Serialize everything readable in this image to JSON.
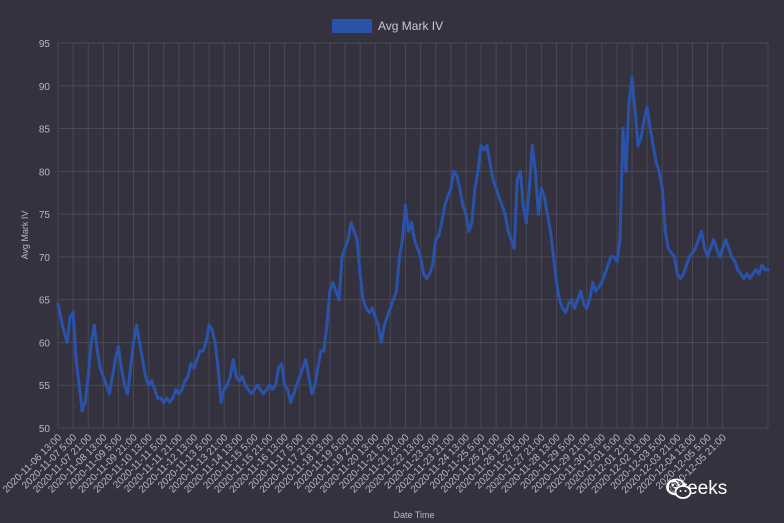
{
  "chart_data": {
    "type": "line",
    "xlabel": "Date Time",
    "ylabel": "Avg Mark IV",
    "ylim": [
      50,
      95
    ],
    "yticks": [
      50,
      55,
      60,
      65,
      70,
      75,
      80,
      85,
      90,
      95
    ],
    "grid": true,
    "legend_position": "top",
    "x_categories": [
      "2020-11-06 13:00",
      "2020-11-07 5:00",
      "2020-11-07 21:00",
      "2020-11-08 13:00",
      "2020-11-09 5:00",
      "2020-11-09 21:00",
      "2020-11-10 13:00",
      "2020-11-11 5:00",
      "2020-11-11 21:00",
      "2020-11-12 13:00",
      "2020-11-13 5:00",
      "2020-11-13 21:00",
      "2020-11-14 13:00",
      "2020-11-15 5:00",
      "2020-11-15 21:00",
      "2020-11-16 13:00",
      "2020-11-17 5:00",
      "2020-11-17 21:00",
      "2020-11-18 13:00",
      "2020-11-19 5:00",
      "2020-11-19 21:00",
      "2020-11-20 13:00",
      "2020-11-21 5:00",
      "2020-11-21 21:00",
      "2020-11-22 13:00",
      "2020-11-23 5:00",
      "2020-11-23 21:00",
      "2020-11-24 13:00",
      "2020-11-25 5:00",
      "2020-11-25 21:00",
      "2020-11-26 13:00",
      "2020-11-27 5:00",
      "2020-11-27 21:00",
      "2020-11-28 13:00",
      "2020-11-29 5:00",
      "2020-11-29 21:00",
      "2020-11-30 13:00",
      "2020-12-01 5:00",
      "2020-12-01 21:00",
      "2020-12-02 13:00",
      "2020-12-03 5:00",
      "2020-12-03 21:00",
      "2020-12-04 13:00",
      "2020-12-05 5:00",
      "2020-12-05 21:00"
    ],
    "series": [
      {
        "name": "Avg Mark IV",
        "color": "#2a52a8",
        "points": [
          [
            0,
            64.5
          ],
          [
            0.3,
            62
          ],
          [
            0.6,
            60
          ],
          [
            0.8,
            63
          ],
          [
            1.0,
            63.5
          ],
          [
            1.2,
            58
          ],
          [
            1.4,
            55
          ],
          [
            1.6,
            52
          ],
          [
            1.8,
            53
          ],
          [
            2.0,
            56
          ],
          [
            2.2,
            60
          ],
          [
            2.4,
            62
          ],
          [
            2.6,
            59
          ],
          [
            2.8,
            57
          ],
          [
            3.0,
            56
          ],
          [
            3.2,
            55
          ],
          [
            3.4,
            54
          ],
          [
            3.6,
            56
          ],
          [
            3.8,
            58
          ],
          [
            4.0,
            59.5
          ],
          [
            4.2,
            57
          ],
          [
            4.4,
            55
          ],
          [
            4.6,
            54
          ],
          [
            4.8,
            57
          ],
          [
            5.0,
            60
          ],
          [
            5.2,
            62
          ],
          [
            5.4,
            60
          ],
          [
            5.6,
            58
          ],
          [
            5.8,
            56
          ],
          [
            6.0,
            55
          ],
          [
            6.2,
            55.5
          ],
          [
            6.4,
            54.5
          ],
          [
            6.6,
            53.5
          ],
          [
            6.8,
            53.5
          ],
          [
            7.0,
            53
          ],
          [
            7.2,
            53.5
          ],
          [
            7.4,
            53
          ],
          [
            7.6,
            53.5
          ],
          [
            7.8,
            54.5
          ],
          [
            8.0,
            54
          ],
          [
            8.2,
            54.5
          ],
          [
            8.4,
            55.5
          ],
          [
            8.6,
            56
          ],
          [
            8.8,
            57.5
          ],
          [
            9.0,
            57
          ],
          [
            9.2,
            58
          ],
          [
            9.4,
            59
          ],
          [
            9.6,
            59
          ],
          [
            9.8,
            60
          ],
          [
            10.0,
            62
          ],
          [
            10.2,
            61.5
          ],
          [
            10.4,
            60
          ],
          [
            10.6,
            57
          ],
          [
            10.8,
            53
          ],
          [
            11.0,
            54.5
          ],
          [
            11.2,
            55
          ],
          [
            11.4,
            56
          ],
          [
            11.6,
            58
          ],
          [
            11.8,
            56
          ],
          [
            12.0,
            55.5
          ],
          [
            12.2,
            56
          ],
          [
            12.4,
            55
          ],
          [
            12.6,
            54.5
          ],
          [
            12.8,
            54
          ],
          [
            13.0,
            54.5
          ],
          [
            13.2,
            55
          ],
          [
            13.4,
            54.5
          ],
          [
            13.6,
            54
          ],
          [
            13.8,
            54.5
          ],
          [
            14.0,
            55
          ],
          [
            14.2,
            54.5
          ],
          [
            14.4,
            55
          ],
          [
            14.6,
            57
          ],
          [
            14.8,
            57.5
          ],
          [
            15.0,
            55
          ],
          [
            15.2,
            54.5
          ],
          [
            15.4,
            53
          ],
          [
            15.6,
            54
          ],
          [
            15.8,
            55
          ],
          [
            16.0,
            56
          ],
          [
            16.2,
            57
          ],
          [
            16.4,
            58
          ],
          [
            16.6,
            56
          ],
          [
            16.8,
            54
          ],
          [
            17.0,
            55
          ],
          [
            17.2,
            57
          ],
          [
            17.4,
            59
          ],
          [
            17.6,
            59
          ],
          [
            17.8,
            62
          ],
          [
            18.0,
            66
          ],
          [
            18.2,
            67
          ],
          [
            18.4,
            66
          ],
          [
            18.6,
            65
          ],
          [
            18.8,
            70
          ],
          [
            19.0,
            71
          ],
          [
            19.2,
            72
          ],
          [
            19.4,
            74
          ],
          [
            19.6,
            73
          ],
          [
            19.8,
            72
          ],
          [
            20.0,
            68
          ],
          [
            20.2,
            65
          ],
          [
            20.4,
            64
          ],
          [
            20.6,
            63.5
          ],
          [
            20.8,
            64
          ],
          [
            21.0,
            63
          ],
          [
            21.2,
            62
          ],
          [
            21.4,
            60
          ],
          [
            21.6,
            62
          ],
          [
            21.8,
            63
          ],
          [
            22.0,
            64
          ],
          [
            22.2,
            65
          ],
          [
            22.4,
            66
          ],
          [
            22.6,
            70
          ],
          [
            22.8,
            72
          ],
          [
            23.0,
            76
          ],
          [
            23.2,
            73
          ],
          [
            23.4,
            74
          ],
          [
            23.6,
            72
          ],
          [
            23.8,
            71
          ],
          [
            24.0,
            70
          ],
          [
            24.2,
            68
          ],
          [
            24.4,
            67.5
          ],
          [
            24.6,
            68
          ],
          [
            24.8,
            69
          ],
          [
            25.0,
            72
          ],
          [
            25.2,
            72.5
          ],
          [
            25.4,
            74
          ],
          [
            25.6,
            76
          ],
          [
            25.8,
            77
          ],
          [
            26.0,
            78
          ],
          [
            26.2,
            80
          ],
          [
            26.4,
            79.5
          ],
          [
            26.6,
            78
          ],
          [
            26.8,
            76
          ],
          [
            27.0,
            75
          ],
          [
            27.2,
            73
          ],
          [
            27.4,
            74
          ],
          [
            27.6,
            78
          ],
          [
            27.8,
            80
          ],
          [
            28.0,
            83
          ],
          [
            28.2,
            82.5
          ],
          [
            28.4,
            83
          ],
          [
            28.6,
            81
          ],
          [
            28.8,
            79
          ],
          [
            29.0,
            78
          ],
          [
            29.2,
            77
          ],
          [
            29.4,
            76
          ],
          [
            29.6,
            75
          ],
          [
            29.8,
            73
          ],
          [
            30.0,
            72
          ],
          [
            30.2,
            71
          ],
          [
            30.4,
            79
          ],
          [
            30.6,
            80
          ],
          [
            30.8,
            76
          ],
          [
            31.0,
            74
          ],
          [
            31.2,
            78
          ],
          [
            31.4,
            83
          ],
          [
            31.6,
            80
          ],
          [
            31.8,
            75
          ],
          [
            32.0,
            78
          ],
          [
            32.2,
            77
          ],
          [
            32.4,
            75
          ],
          [
            32.6,
            73
          ],
          [
            32.8,
            70
          ],
          [
            33.0,
            67
          ],
          [
            33.2,
            65
          ],
          [
            33.4,
            64
          ],
          [
            33.6,
            63.5
          ],
          [
            33.8,
            64.5
          ],
          [
            34.0,
            65
          ],
          [
            34.2,
            64
          ],
          [
            34.4,
            65
          ],
          [
            34.6,
            66
          ],
          [
            34.8,
            64.5
          ],
          [
            35.0,
            64
          ],
          [
            35.2,
            65
          ],
          [
            35.4,
            67
          ],
          [
            35.6,
            66
          ],
          [
            35.8,
            66.5
          ],
          [
            36.0,
            67
          ],
          [
            36.2,
            68
          ],
          [
            36.4,
            69
          ],
          [
            36.6,
            70
          ],
          [
            36.8,
            70
          ],
          [
            37.0,
            69.5
          ],
          [
            37.2,
            72
          ],
          [
            37.4,
            85
          ],
          [
            37.6,
            80
          ],
          [
            37.8,
            88
          ],
          [
            38.0,
            91
          ],
          [
            38.2,
            87
          ],
          [
            38.4,
            83
          ],
          [
            38.6,
            84
          ],
          [
            38.8,
            86
          ],
          [
            39.0,
            87.5
          ],
          [
            39.2,
            85
          ],
          [
            39.4,
            83
          ],
          [
            39.6,
            81
          ],
          [
            39.8,
            80
          ],
          [
            40.0,
            78
          ],
          [
            40.2,
            73
          ],
          [
            40.4,
            71
          ],
          [
            40.6,
            70.5
          ],
          [
            40.8,
            70
          ],
          [
            41.0,
            68
          ],
          [
            41.2,
            67.5
          ],
          [
            41.4,
            68
          ],
          [
            41.6,
            69
          ],
          [
            41.8,
            70
          ],
          [
            42.0,
            70.5
          ],
          [
            42.2,
            71
          ],
          [
            42.4,
            72
          ],
          [
            42.6,
            73
          ],
          [
            42.8,
            71
          ],
          [
            43.0,
            70
          ],
          [
            43.2,
            71
          ],
          [
            43.4,
            72
          ],
          [
            43.6,
            71
          ],
          [
            43.8,
            70
          ],
          [
            44.0,
            71
          ],
          [
            44.2,
            72
          ],
          [
            44.4,
            71
          ],
          [
            44.6,
            70
          ],
          [
            44.8,
            69.5
          ],
          [
            45.0,
            68.5
          ],
          [
            45.2,
            68
          ],
          [
            45.4,
            67.5
          ],
          [
            45.6,
            68
          ],
          [
            45.8,
            67.5
          ],
          [
            46.0,
            68
          ],
          [
            46.2,
            68.5
          ],
          [
            46.4,
            68
          ],
          [
            46.6,
            69
          ],
          [
            46.8,
            68.5
          ],
          [
            47.0,
            68.5
          ]
        ]
      }
    ]
  },
  "watermark": {
    "text": "Greeks",
    "icon": "wechat-icon"
  }
}
